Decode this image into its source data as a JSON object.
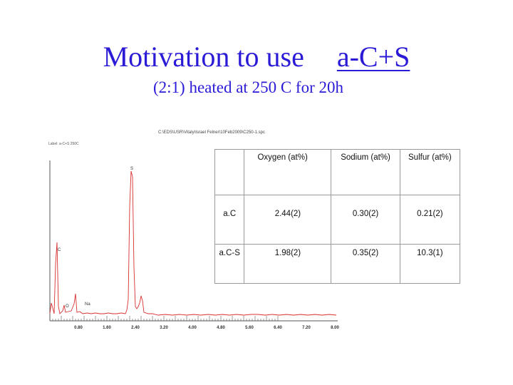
{
  "slide": {
    "title_part1": "Motivation to use",
    "title_part2": "a-C+S",
    "subtitle": "(2:1) heated at 250 C for 20h"
  },
  "spectrum": {
    "file_path": "C:\\EDS\\USR\\Vitaly\\Israel Felner\\10Feb2009\\C250-1.spc",
    "label": "Label: a-C+S 250C",
    "peak_labels": [
      "S",
      "C",
      "O",
      "Na"
    ],
    "tick_labels": [
      "0.80",
      "1.60",
      "2.40",
      "3.20",
      "4.00",
      "4.80",
      "5.60",
      "6.40",
      "7.20",
      "8.00"
    ],
    "colors": {
      "trace": "#d83030",
      "axis": "#555555"
    }
  },
  "table": {
    "headers": [
      "",
      "Oxygen (at%)",
      "Sodium (at%)",
      "Sulfur (at%)"
    ],
    "rows": [
      {
        "sample": "a.C",
        "oxygen": "2.44(2)",
        "sodium": "0.30(2)",
        "sulfur": "0.21(2)"
      },
      {
        "sample": "a.C-S",
        "oxygen": "1.98(2)",
        "sodium": "0.35(2)",
        "sulfur": "10.3(1)"
      }
    ]
  },
  "colors": {
    "title": "#2b1ad6",
    "table_border": "#9a9a9a"
  }
}
